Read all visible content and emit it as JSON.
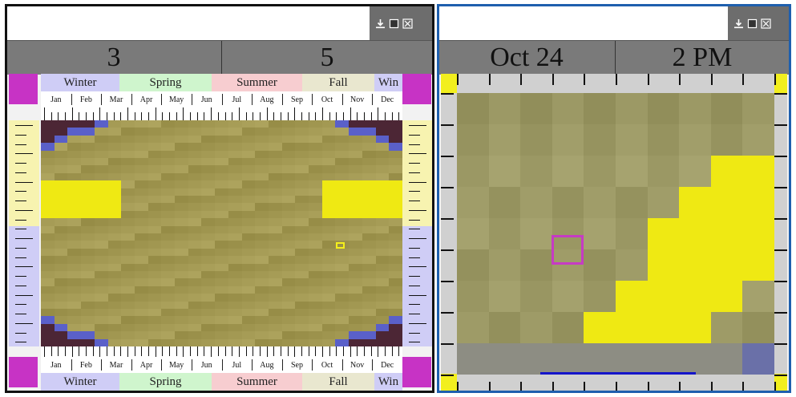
{
  "left_panel": {
    "title_input": "",
    "toolbar": [
      {
        "name": "download-icon",
        "label": "⤓"
      },
      {
        "name": "window-icon",
        "label": "■"
      },
      {
        "name": "close-icon",
        "label": "⊠"
      }
    ],
    "status": {
      "left_value": "3",
      "right_value": "5"
    },
    "seasons_top": [
      "Winter",
      "Spring",
      "Summer",
      "Fall",
      "Win"
    ],
    "seasons_bottom": [
      "Winter",
      "Spring",
      "Summer",
      "Fall",
      "Win"
    ],
    "months": [
      "Jan",
      "Feb",
      "Mar",
      "Apr",
      "May",
      "Jun",
      "Jul",
      "Aug",
      "Sep",
      "Oct",
      "Nov",
      "Dec"
    ],
    "colors": {
      "season_winter": "#cfcdf6",
      "season_spring": "#cff5cd",
      "season_summer": "#f7cdd0",
      "season_fall": "#e9e7cf",
      "night": "#4c2635",
      "twilight": "#5a60c9",
      "bright": "#efe913",
      "corner": "#c733c5",
      "selection": "#f5ef1c"
    }
  },
  "right_panel": {
    "title_input": "",
    "toolbar": [
      {
        "name": "download-icon",
        "label": "⤓"
      },
      {
        "name": "window-icon",
        "label": "■"
      },
      {
        "name": "close-icon",
        "label": "⊠"
      }
    ],
    "status": {
      "date": "Oct 24",
      "time": "2 PM"
    },
    "colors": {
      "frame": "#d0d0d0",
      "corner": "#f2ef1e",
      "selection": "#c63bc4",
      "range_bar": "#1515c9"
    }
  }
}
